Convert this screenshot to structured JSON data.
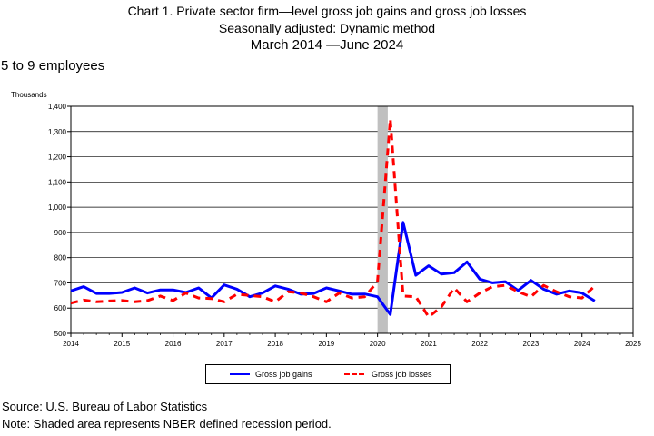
{
  "chart_data": {
    "type": "line",
    "title": "Chart 1. Private sector firm—level gross job gains and gross job losses",
    "subtitle": "Seasonally adjusted: Dynamic method",
    "period": "March 2014  —June 2024",
    "panel_label": "5 to 9 employees",
    "ylabel": "Thousands",
    "ylim": [
      500,
      1400
    ],
    "yticks": [
      "500",
      "600",
      "700",
      "800",
      "900",
      "1,000",
      "1,100",
      "1,200",
      "1,300",
      "1,400"
    ],
    "xlim": [
      2014,
      2025
    ],
    "xticks": [
      "2014",
      "2015",
      "2016",
      "2017",
      "2018",
      "2019",
      "2020",
      "2021",
      "2022",
      "2023",
      "2024",
      "2025"
    ],
    "recession": [
      2020.0,
      2020.2
    ],
    "grid": "horizontal",
    "legend_position": "bottom",
    "series": [
      {
        "name": "Gross job gains",
        "color": "#0000ff",
        "style": "solid",
        "x": [
          2014.0,
          2014.25,
          2014.5,
          2014.75,
          2015.0,
          2015.25,
          2015.5,
          2015.75,
          2016.0,
          2016.25,
          2016.5,
          2016.75,
          2017.0,
          2017.25,
          2017.5,
          2017.75,
          2018.0,
          2018.25,
          2018.5,
          2018.75,
          2019.0,
          2019.25,
          2019.5,
          2019.75,
          2020.0,
          2020.25,
          2020.5,
          2020.75,
          2021.0,
          2021.25,
          2021.5,
          2021.75,
          2022.0,
          2022.25,
          2022.5,
          2022.75,
          2023.0,
          2023.25,
          2023.5,
          2023.75,
          2024.0,
          2024.25
        ],
        "values": [
          668,
          685,
          658,
          658,
          662,
          680,
          660,
          672,
          672,
          662,
          680,
          640,
          692,
          675,
          645,
          660,
          688,
          675,
          655,
          658,
          680,
          668,
          655,
          656,
          645,
          575,
          940,
          730,
          768,
          735,
          740,
          783,
          715,
          700,
          705,
          670,
          710,
          675,
          655,
          668,
          660,
          628
        ]
      },
      {
        "name": "Gross job losses",
        "color": "#ff0000",
        "style": "dashed",
        "x": [
          2014.0,
          2014.25,
          2014.5,
          2014.75,
          2015.0,
          2015.25,
          2015.5,
          2015.75,
          2016.0,
          2016.25,
          2016.5,
          2016.75,
          2017.0,
          2017.25,
          2017.5,
          2017.75,
          2018.0,
          2018.25,
          2018.5,
          2018.75,
          2019.0,
          2019.25,
          2019.5,
          2019.75,
          2020.0,
          2020.25,
          2020.5,
          2020.75,
          2021.0,
          2021.25,
          2021.5,
          2021.75,
          2022.0,
          2022.25,
          2022.5,
          2022.75,
          2023.0,
          2023.25,
          2023.5,
          2023.75,
          2024.0,
          2024.25
        ],
        "values": [
          620,
          632,
          625,
          628,
          630,
          625,
          630,
          648,
          630,
          660,
          640,
          638,
          625,
          655,
          650,
          645,
          625,
          665,
          660,
          645,
          625,
          660,
          640,
          645,
          705,
          1350,
          648,
          645,
          565,
          605,
          680,
          625,
          660,
          685,
          690,
          665,
          645,
          690,
          665,
          645,
          640,
          688
        ]
      }
    ]
  },
  "footer": {
    "source": "Source: U.S. Bureau of Labor Statistics",
    "note": "Note: Shaded area represents NBER defined recession period."
  }
}
